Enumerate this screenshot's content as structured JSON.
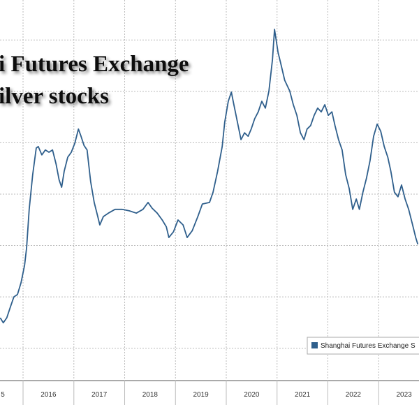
{
  "chart_data": {
    "type": "line",
    "title": [
      "i Futures Exchange",
      "ilver stocks"
    ],
    "xlabels": [
      "5",
      "2016",
      "2017",
      "2018",
      "2019",
      "2020",
      "2021",
      "2022",
      "2023"
    ],
    "xlim": [
      2015.546,
      2023.794
    ],
    "xticks": [
      2016,
      2017,
      2018,
      2019,
      2020,
      2021,
      2022,
      2023
    ],
    "ylim": [
      0,
      100
    ],
    "yticks": [
      8.5,
      22,
      35.5,
      49,
      62.5,
      76,
      89.5
    ],
    "grid": true,
    "series": [
      {
        "name": "Shanghai Futures Exchange S",
        "color": "#2f5f8c",
        "x": [
          2015.55,
          2015.61,
          2015.68,
          2015.75,
          2015.82,
          2015.89,
          2015.96,
          2016.03,
          2016.07,
          2016.12,
          2016.19,
          2016.26,
          2016.3,
          2016.37,
          2016.44,
          2016.51,
          2016.58,
          2016.65,
          2016.71,
          2016.76,
          2016.81,
          2016.88,
          2016.95,
          2017.02,
          2017.09,
          2017.14,
          2017.2,
          2017.26,
          2017.33,
          2017.4,
          2017.47,
          2017.51,
          2017.58,
          2017.68,
          2017.81,
          2017.95,
          2018.09,
          2018.23,
          2018.36,
          2018.46,
          2018.54,
          2018.64,
          2018.74,
          2018.82,
          2018.87,
          2018.96,
          2019.05,
          2019.15,
          2019.23,
          2019.33,
          2019.44,
          2019.53,
          2019.67,
          2019.74,
          2019.83,
          2019.92,
          2019.97,
          2020.04,
          2020.1,
          2020.15,
          2020.22,
          2020.29,
          2020.36,
          2020.43,
          2020.49,
          2020.56,
          2020.63,
          2020.7,
          2020.77,
          2020.84,
          2020.91,
          2020.95,
          2021.02,
          2021.07,
          2021.15,
          2021.25,
          2021.32,
          2021.39,
          2021.46,
          2021.53,
          2021.59,
          2021.66,
          2021.73,
          2021.8,
          2021.87,
          2021.94,
          2022.01,
          2022.08,
          2022.14,
          2022.21,
          2022.28,
          2022.35,
          2022.42,
          2022.49,
          2022.56,
          2022.62,
          2022.69,
          2022.76,
          2022.83,
          2022.9,
          2022.97,
          2023.04,
          2023.11,
          2023.18,
          2023.24,
          2023.31,
          2023.38,
          2023.45,
          2023.52,
          2023.59,
          2023.66,
          2023.73,
          2023.77
        ],
        "values": [
          16.5,
          15.2,
          16.5,
          19.3,
          22.0,
          22.6,
          25.7,
          30.3,
          34.9,
          45.0,
          54.1,
          61.1,
          61.5,
          59.3,
          60.6,
          60.0,
          60.6,
          56.9,
          52.7,
          50.8,
          55.0,
          58.7,
          60.0,
          62.4,
          66.1,
          64.2,
          61.8,
          60.6,
          52.3,
          46.8,
          43.1,
          40.9,
          43.1,
          44.0,
          45.0,
          45.0,
          44.6,
          44.0,
          45.0,
          46.8,
          45.3,
          44.0,
          42.2,
          40.4,
          37.6,
          39.1,
          42.2,
          40.9,
          37.6,
          39.4,
          43.1,
          46.4,
          46.8,
          49.5,
          55.0,
          61.5,
          67.9,
          73.4,
          75.8,
          72.5,
          67.9,
          63.3,
          65.1,
          64.2,
          66.1,
          68.8,
          70.6,
          73.4,
          71.6,
          76.1,
          84.4,
          92.3,
          86.2,
          83.5,
          78.9,
          76.1,
          72.5,
          69.7,
          65.1,
          63.3,
          66.1,
          67.0,
          69.7,
          71.6,
          70.6,
          72.5,
          69.7,
          70.6,
          67.0,
          63.3,
          60.6,
          54.1,
          50.5,
          45.0,
          47.7,
          45.0,
          49.5,
          53.2,
          57.8,
          64.2,
          67.4,
          65.5,
          61.5,
          58.7,
          55.0,
          49.5,
          48.3,
          51.4,
          47.7,
          45.0,
          41.3,
          37.6,
          35.8
        ]
      }
    ]
  }
}
